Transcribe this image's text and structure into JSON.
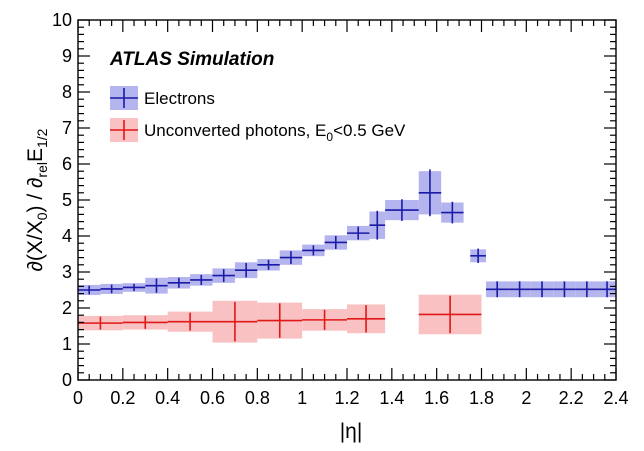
{
  "chart_data": {
    "type": "scatter",
    "experiment_label": "ATLAS Simulation",
    "xlabel_parts": [
      "|η|"
    ],
    "ylabel_parts": [
      "∂(X/X",
      "0",
      ") / ∂",
      "rel",
      "E",
      "1/2"
    ],
    "xlim": [
      0,
      2.4
    ],
    "ylim": [
      0,
      10
    ],
    "x_ticks": [
      "0",
      "0.2",
      "0.4",
      "0.6",
      "0.8",
      "1",
      "1.2",
      "1.4",
      "1.6",
      "1.8",
      "2",
      "2.2",
      "2.4"
    ],
    "y_ticks": [
      "0",
      "1",
      "2",
      "3",
      "4",
      "5",
      "6",
      "7",
      "8",
      "9",
      "10"
    ],
    "legend": {
      "electrons": "Electrons",
      "photons_parts": [
        "Unconverted photons, E",
        "0",
        "<0.5 GeV"
      ]
    },
    "series": [
      {
        "name": "Electrons",
        "color": "#1a1aa6",
        "band_color": "#b4b4ee",
        "points": [
          {
            "x0": 0.0,
            "x1": 0.1,
            "y": 2.5,
            "stat": 0.12,
            "syst": 0.14
          },
          {
            "x0": 0.1,
            "x1": 0.2,
            "y": 2.53,
            "stat": 0.12,
            "syst": 0.14
          },
          {
            "x0": 0.2,
            "x1": 0.3,
            "y": 2.57,
            "stat": 0.1,
            "syst": 0.12
          },
          {
            "x0": 0.3,
            "x1": 0.4,
            "y": 2.62,
            "stat": 0.2,
            "syst": 0.22
          },
          {
            "x0": 0.4,
            "x1": 0.5,
            "y": 2.7,
            "stat": 0.14,
            "syst": 0.16
          },
          {
            "x0": 0.5,
            "x1": 0.6,
            "y": 2.78,
            "stat": 0.14,
            "syst": 0.16
          },
          {
            "x0": 0.6,
            "x1": 0.7,
            "y": 2.9,
            "stat": 0.18,
            "syst": 0.2
          },
          {
            "x0": 0.7,
            "x1": 0.8,
            "y": 3.05,
            "stat": 0.2,
            "syst": 0.22
          },
          {
            "x0": 0.8,
            "x1": 0.9,
            "y": 3.2,
            "stat": 0.14,
            "syst": 0.16
          },
          {
            "x0": 0.9,
            "x1": 1.0,
            "y": 3.4,
            "stat": 0.18,
            "syst": 0.2
          },
          {
            "x0": 1.0,
            "x1": 1.1,
            "y": 3.6,
            "stat": 0.14,
            "syst": 0.16
          },
          {
            "x0": 1.1,
            "x1": 1.2,
            "y": 3.82,
            "stat": 0.18,
            "syst": 0.2
          },
          {
            "x0": 1.2,
            "x1": 1.3,
            "y": 4.08,
            "stat": 0.18,
            "syst": 0.2
          },
          {
            "x0": 1.3,
            "x1": 1.37,
            "y": 4.3,
            "stat": 0.4,
            "syst": 0.38
          },
          {
            "x0": 1.37,
            "x1": 1.52,
            "y": 4.72,
            "stat": 0.3,
            "syst": 0.28
          },
          {
            "x0": 1.52,
            "x1": 1.62,
            "y": 5.2,
            "stat": 0.65,
            "syst": 0.6
          },
          {
            "x0": 1.62,
            "x1": 1.72,
            "y": 4.65,
            "stat": 0.3,
            "syst": 0.28
          },
          {
            "x0": 1.75,
            "x1": 1.82,
            "y": 3.45,
            "stat": 0.2,
            "syst": 0.18
          },
          {
            "x0": 1.82,
            "x1": 1.92,
            "y": 2.52,
            "stat": 0.22,
            "syst": 0.22
          },
          {
            "x0": 1.92,
            "x1": 2.02,
            "y": 2.52,
            "stat": 0.22,
            "syst": 0.22
          },
          {
            "x0": 2.02,
            "x1": 2.12,
            "y": 2.52,
            "stat": 0.22,
            "syst": 0.22
          },
          {
            "x0": 2.12,
            "x1": 2.22,
            "y": 2.52,
            "stat": 0.22,
            "syst": 0.22
          },
          {
            "x0": 2.22,
            "x1": 2.32,
            "y": 2.52,
            "stat": 0.22,
            "syst": 0.22
          },
          {
            "x0": 2.32,
            "x1": 2.4,
            "y": 2.52,
            "stat": 0.22,
            "syst": 0.22
          }
        ]
      },
      {
        "name": "Unconverted photons, E0<0.5 GeV",
        "color": "#e01818",
        "band_color": "#f9c1c1",
        "points": [
          {
            "x0": 0.0,
            "x1": 0.2,
            "y": 1.58,
            "stat": 0.18,
            "syst": 0.2
          },
          {
            "x0": 0.2,
            "x1": 0.4,
            "y": 1.6,
            "stat": 0.18,
            "syst": 0.2
          },
          {
            "x0": 0.4,
            "x1": 0.6,
            "y": 1.62,
            "stat": 0.25,
            "syst": 0.28
          },
          {
            "x0": 0.6,
            "x1": 0.8,
            "y": 1.62,
            "stat": 0.55,
            "syst": 0.58
          },
          {
            "x0": 0.8,
            "x1": 1.0,
            "y": 1.65,
            "stat": 0.48,
            "syst": 0.5
          },
          {
            "x0": 1.0,
            "x1": 1.2,
            "y": 1.67,
            "stat": 0.28,
            "syst": 0.3
          },
          {
            "x0": 1.2,
            "x1": 1.37,
            "y": 1.7,
            "stat": 0.38,
            "syst": 0.4
          },
          {
            "x0": 1.52,
            "x1": 1.8,
            "y": 1.82,
            "stat": 0.52,
            "syst": 0.55
          }
        ]
      }
    ]
  }
}
